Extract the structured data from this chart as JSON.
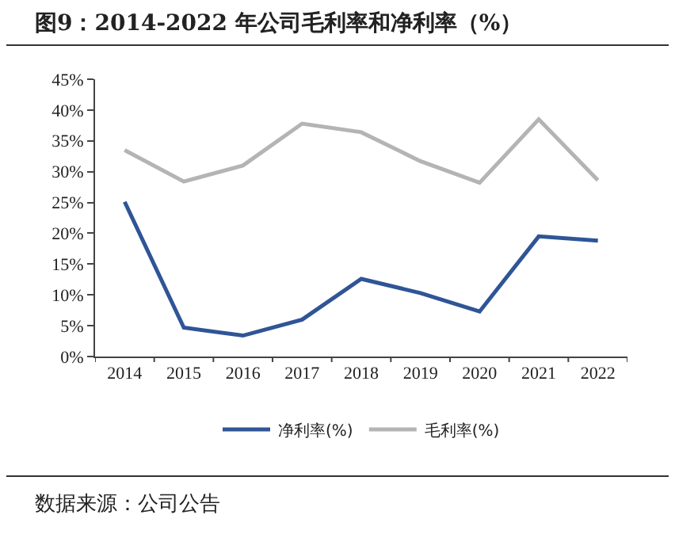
{
  "chart_data": {
    "type": "line",
    "title": "图9：2014-2022 年公司毛利率和净利率（%）",
    "annotations": [
      "数据来源：公司公告"
    ],
    "categories": [
      "2014",
      "2015",
      "2016",
      "2017",
      "2018",
      "2019",
      "2020",
      "2021",
      "2022"
    ],
    "series": [
      {
        "name": "净利率(%)",
        "color": "#2f5597",
        "values": [
          25.1,
          4.7,
          3.4,
          6.0,
          12.6,
          10.3,
          7.3,
          19.5,
          18.8
        ]
      },
      {
        "name": "毛利率(%)",
        "color": "#b4b4b4",
        "values": [
          33.5,
          28.4,
          31.0,
          37.8,
          36.4,
          31.7,
          28.2,
          38.5,
          28.6
        ]
      }
    ],
    "ylim": [
      0,
      45
    ],
    "yticks": [
      {
        "value": 0,
        "label": "0%"
      },
      {
        "value": 5,
        "label": "5%"
      },
      {
        "value": 10,
        "label": "10%"
      },
      {
        "value": 15,
        "label": "15%"
      },
      {
        "value": 20,
        "label": "20%"
      },
      {
        "value": 25,
        "label": "25%"
      },
      {
        "value": 30,
        "label": "30%"
      },
      {
        "value": 35,
        "label": "35%"
      },
      {
        "value": 40,
        "label": "40%"
      },
      {
        "value": 45,
        "label": "45%"
      }
    ],
    "grid": false,
    "legend": "bottom",
    "marker": "none",
    "line_style": "solid"
  }
}
